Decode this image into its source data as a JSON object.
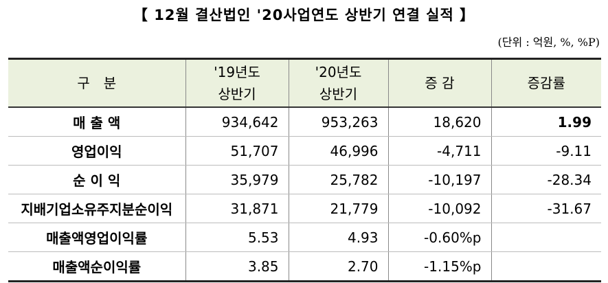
{
  "header": {
    "title": "【 12월 결산법인 '20사업연도 상반기 연결 실적 】",
    "unit": "(단위 : 억원, %, %P)"
  },
  "table": {
    "columns": [
      [
        "구　분"
      ],
      [
        "'19년도",
        "상반기"
      ],
      [
        "'20년도",
        "상반기"
      ],
      [
        "증 감"
      ],
      [
        "증감률"
      ]
    ],
    "rows": [
      [
        "매 출 액",
        "934,642",
        "953,263",
        "18,620",
        "1.99"
      ],
      [
        "영업이익",
        "51,707",
        "46,996",
        "-4,711",
        "-9.11"
      ],
      [
        "순 이 익",
        "35,979",
        "25,782",
        "-10,197",
        "-28.34"
      ],
      [
        "지배기업소유주지분순이익",
        "31,871",
        "21,779",
        "-10,092",
        "-31.67"
      ],
      [
        "매출액영업이익률",
        "5.53",
        "4.93",
        "-0.60%p"
      ],
      [
        "매출액순이익률",
        "3.85",
        "2.70",
        "-1.15%p"
      ]
    ]
  }
}
